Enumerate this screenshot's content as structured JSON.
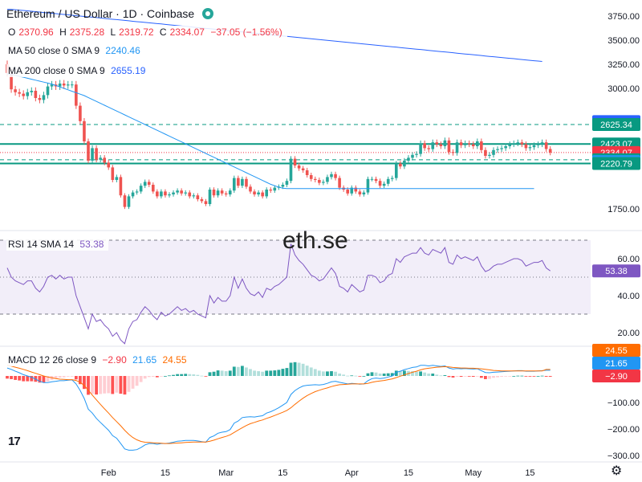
{
  "header": {
    "title": "Ethereum / US Dollar · 1D · Coinbase",
    "ohlc": {
      "o_label": "O",
      "o": "2370.96",
      "h_label": "H",
      "h": "2375.28",
      "l_label": "L",
      "l": "2319.72",
      "c_label": "C",
      "c": "2334.07",
      "change": "−37.05 (−1.56%)"
    }
  },
  "indicators": {
    "ma50": {
      "label": "MA 50 close 0 SMA 9",
      "value": "2240.46",
      "color": "#2196f3"
    },
    "ma200": {
      "label": "MA 200 close 0 SMA 9",
      "value": "2655.19",
      "color": "#2962ff"
    },
    "rsi": {
      "label": "RSI 14 SMA 14",
      "value": "53.38",
      "color": "#7e57c2"
    },
    "macd": {
      "label": "MACD 12 26 close 9",
      "hist": "−2.90",
      "macd": "21.65",
      "signal": "24.55",
      "macd_color": "#2196f3",
      "signal_color": "#ff6d00"
    }
  },
  "watermark": "eth.se",
  "logo": "17",
  "colors": {
    "up": "#26a69a",
    "down": "#ef5350",
    "level_green": "#089981",
    "text": "#131722"
  },
  "chart_data": {
    "type": "candlestick",
    "symbol": "ETH/USD",
    "timeframe": "1D",
    "exchange": "Coinbase",
    "price_axis": {
      "ticks": [
        1750,
        3000,
        3250,
        3500,
        3750
      ],
      "tick_labels": [
        "1750.00",
        "3000.00",
        "3250.00",
        "3500.00",
        "3750.00"
      ],
      "range": [
        1600,
        3850
      ]
    },
    "x_axis_labels": [
      "Feb",
      "15",
      "Mar",
      "15",
      "Apr",
      "15",
      "May",
      "15"
    ],
    "x_axis_days": [
      32,
      46,
      61,
      75,
      92,
      106,
      122,
      136
    ],
    "first_day": 7,
    "close": [
      3160,
      2990,
      2960,
      2945,
      2920,
      2960,
      2975,
      2900,
      2880,
      2930,
      3020,
      3040,
      3020,
      3050,
      3030,
      3040,
      3040,
      2820,
      2660,
      2450,
      2250,
      2380,
      2260,
      2280,
      2230,
      2180,
      2050,
      2080,
      1890,
      1770,
      1880,
      1920,
      1930,
      1990,
      2030,
      2000,
      1930,
      1880,
      1930,
      1890,
      1900,
      1920,
      1940,
      1910,
      1920,
      1880,
      1890,
      1850,
      1830,
      1800,
      1950,
      1890,
      1940,
      1910,
      1900,
      1940,
      2070,
      1990,
      2060,
      1980,
      1930,
      1900,
      1920,
      1880,
      1950,
      1940,
      1970,
      1980,
      2000,
      2040,
      2270,
      2200,
      2170,
      2150,
      2100,
      2060,
      2050,
      2020,
      2030,
      2080,
      2110,
      2070,
      1970,
      1950,
      1910,
      1970,
      1930,
      1900,
      1920,
      2060,
      2060,
      2040,
      1990,
      2010,
      2060,
      2070,
      2220,
      2190,
      2250,
      2280,
      2310,
      2320,
      2430,
      2380,
      2370,
      2440,
      2420,
      2400,
      2460,
      2340,
      2330,
      2440,
      2410,
      2430,
      2420,
      2400,
      2450,
      2360,
      2300,
      2310,
      2360,
      2370,
      2380,
      2400,
      2420,
      2430,
      2440,
      2420,
      2380,
      2390,
      2410,
      2420,
      2440,
      2371,
      2334
    ],
    "ma200": [
      3820,
      3820,
      3816,
      3812,
      3808,
      3804,
      3800,
      3796,
      3792,
      3787,
      3783,
      3779,
      3775,
      3771,
      3767,
      3763,
      3758,
      3754,
      3750,
      3746,
      3742,
      3738,
      3734,
      3730,
      3725,
      3721,
      3717,
      3713,
      3709,
      3705,
      3701,
      3696,
      3692,
      3688,
      3684,
      3680,
      3676,
      3672,
      3668,
      3663,
      3659,
      3655,
      3651,
      3647,
      3643,
      3639,
      3634,
      3630,
      3626,
      3622,
      3618,
      3614,
      3610,
      3605,
      3601,
      3597,
      3593,
      3589,
      3585,
      3581,
      3576,
      3572,
      3568,
      3564,
      3560,
      3556,
      3552,
      3548,
      3543,
      3539,
      3535,
      3531,
      3527,
      3523,
      3519,
      3514,
      3510,
      3506,
      3502,
      3498,
      3494,
      3490,
      3485,
      3481,
      3477,
      3473,
      3469,
      3465,
      3461,
      3456,
      3452,
      3448,
      3444,
      3440,
      3436,
      3432,
      3428,
      3423,
      3419,
      3415,
      3411,
      3407,
      3403,
      3399,
      3394,
      3390,
      3386,
      3382,
      3378,
      3374,
      3370,
      3365,
      3361,
      3357,
      3353,
      3349,
      3345,
      3341,
      3336,
      3332,
      3328,
      3324,
      3320,
      3316,
      3312,
      3308,
      3303,
      3299,
      3295,
      3291,
      3287,
      3283,
      3279,
      2655
    ],
    "ma50": [
      3150,
      3145,
      3135,
      3125,
      3115,
      3105,
      3095,
      3085,
      3075,
      3065,
      3055,
      3045,
      3030,
      3015,
      3000,
      2985,
      2970,
      2955,
      2940,
      2925,
      2905,
      2885,
      2865,
      2845,
      2825,
      2805,
      2785,
      2765,
      2745,
      2725,
      2705,
      2685,
      2665,
      2645,
      2625,
      2605,
      2585,
      2565,
      2545,
      2525,
      2505,
      2485,
      2465,
      2445,
      2425,
      2405,
      2385,
      2365,
      2345,
      2325,
      2305,
      2285,
      2265,
      2245,
      2225,
      2205,
      2185,
      2165,
      2145,
      2125,
      2105,
      2085,
      2065,
      2045,
      2025,
      2005,
      1990,
      1975,
      1965,
      1960,
      1960,
      1960,
      1960,
      1960,
      1960,
      1960,
      1960,
      1960,
      1960,
      1960,
      1960,
      1960,
      1960,
      1960,
      1960,
      1960,
      1960,
      1960,
      1960,
      1960,
      1960,
      1960,
      1960,
      1960,
      1960,
      1960,
      1960,
      1960,
      1960,
      1960,
      1960,
      1960,
      1960,
      1960,
      1960,
      1960,
      1960,
      1960,
      1960,
      1960,
      1960,
      1960,
      1960,
      1960,
      1960,
      1960,
      1960,
      1960,
      1960,
      1960,
      1960,
      1960,
      1960,
      1960,
      1960,
      1960,
      1960,
      1960,
      1960,
      1960,
      1960,
      2240
    ],
    "levels": [
      {
        "value": 2625.34,
        "label": "2625.34",
        "style": "dashed",
        "color": "#089981"
      },
      {
        "value": 2423.07,
        "label": "2423.07",
        "style": "solid",
        "color": "#089981"
      },
      {
        "value": 2259.15,
        "label": "2259.15",
        "style": "dashed",
        "color": "#089981"
      },
      {
        "value": 2220.79,
        "label": "2220.79",
        "style": "solid",
        "color": "#089981"
      }
    ],
    "price_labels": [
      {
        "value": 2655.19,
        "label": "2655.19",
        "color": "#2962ff"
      },
      {
        "value": 2625.34,
        "label": "2625.34",
        "color": "#089981"
      },
      {
        "value": 2423.07,
        "label": "2423.07",
        "color": "#089981"
      },
      {
        "value": 2334.07,
        "label": "2334.07",
        "color": "#f23645"
      },
      {
        "value": 2259.15,
        "label": "2259.15",
        "color": "#089981"
      },
      {
        "value": 2240.46,
        "label": "2240.46",
        "color": "#2196f3"
      },
      {
        "value": 2220.79,
        "label": "2220.79",
        "color": "#089981"
      }
    ],
    "rsi": {
      "axis_ticks": [
        20,
        40,
        60
      ],
      "tick_labels": [
        "20.00",
        "40.00",
        "60.00"
      ],
      "band": [
        30,
        70
      ],
      "range": [
        15,
        75
      ],
      "values": [
        55,
        50,
        48,
        47,
        46,
        48,
        48,
        44,
        42,
        45,
        50,
        51,
        49,
        51,
        49,
        50,
        50,
        40,
        34,
        28,
        22,
        30,
        26,
        27,
        24,
        22,
        18,
        20,
        16,
        14,
        22,
        26,
        27,
        31,
        34,
        32,
        29,
        27,
        31,
        29,
        30,
        32,
        34,
        32,
        33,
        31,
        32,
        30,
        29,
        28,
        40,
        36,
        39,
        37,
        37,
        40,
        50,
        44,
        49,
        44,
        41,
        40,
        42,
        39,
        44,
        43,
        45,
        46,
        48,
        50,
        68,
        62,
        59,
        57,
        54,
        51,
        50,
        48,
        49,
        52,
        55,
        52,
        45,
        44,
        42,
        46,
        44,
        42,
        43,
        51,
        51,
        50,
        47,
        48,
        51,
        52,
        60,
        58,
        61,
        62,
        63,
        63,
        66,
        63,
        62,
        65,
        64,
        63,
        66,
        58,
        57,
        62,
        60,
        61,
        60,
        59,
        61,
        56,
        53,
        54,
        56,
        57,
        57,
        58,
        59,
        60,
        60,
        59,
        56,
        57,
        58,
        58,
        59,
        55,
        53.38
      ]
    },
    "macd": {
      "axis_ticks": [
        -300,
        -200,
        -100
      ],
      "tick_labels": [
        "−300.00",
        "−200.00",
        "−100.00"
      ],
      "range": [
        -330,
        40
      ],
      "macd": [
        30,
        25,
        18,
        12,
        5,
        0,
        -5,
        -12,
        -20,
        -25,
        -25,
        -22,
        -20,
        -18,
        -18,
        -16,
        -15,
        -30,
        -55,
        -85,
        -125,
        -140,
        -160,
        -175,
        -190,
        -205,
        -225,
        -235,
        -255,
        -275,
        -280,
        -280,
        -278,
        -270,
        -260,
        -255,
        -255,
        -258,
        -255,
        -255,
        -253,
        -250,
        -246,
        -245,
        -243,
        -243,
        -243,
        -245,
        -248,
        -250,
        -232,
        -226,
        -216,
        -212,
        -210,
        -202,
        -178,
        -170,
        -157,
        -155,
        -154,
        -155,
        -152,
        -150,
        -140,
        -135,
        -128,
        -120,
        -110,
        -100,
        -70,
        -55,
        -45,
        -38,
        -35,
        -34,
        -33,
        -34,
        -32,
        -28,
        -22,
        -20,
        -24,
        -27,
        -30,
        -28,
        -29,
        -31,
        -30,
        -18,
        -10,
        -8,
        -10,
        -8,
        -4,
        0,
        14,
        18,
        24,
        28,
        32,
        34,
        40,
        40,
        38,
        40,
        38,
        36,
        38,
        30,
        26,
        28,
        27,
        28,
        27,
        26,
        27,
        20,
        13,
        12,
        14,
        15,
        16,
        17,
        18,
        19,
        20,
        20,
        18,
        18,
        18,
        19,
        20,
        21.65,
        21.65
      ],
      "signal": [
        40,
        37,
        33,
        29,
        25,
        20,
        15,
        10,
        5,
        0,
        -4,
        -7,
        -10,
        -12,
        -13,
        -14,
        -14,
        -17,
        -24,
        -36,
        -54,
        -72,
        -90,
        -107,
        -124,
        -140,
        -157,
        -172,
        -188,
        -205,
        -220,
        -232,
        -241,
        -247,
        -250,
        -251,
        -252,
        -253,
        -254,
        -255,
        -255,
        -254,
        -253,
        -252,
        -251,
        -250,
        -249,
        -249,
        -249,
        -249,
        -246,
        -242,
        -237,
        -232,
        -228,
        -222,
        -213,
        -204,
        -195,
        -187,
        -180,
        -175,
        -170,
        -166,
        -160,
        -155,
        -149,
        -143,
        -137,
        -130,
        -120,
        -107,
        -95,
        -84,
        -74,
        -66,
        -59,
        -54,
        -49,
        -45,
        -40,
        -36,
        -33,
        -32,
        -31,
        -30,
        -30,
        -30,
        -30,
        -28,
        -24,
        -21,
        -19,
        -17,
        -14,
        -11,
        -6,
        -1,
        4,
        9,
        14,
        18,
        23,
        27,
        29,
        31,
        33,
        34,
        35,
        34,
        32,
        31,
        30,
        30,
        29,
        29,
        28,
        27,
        25,
        23,
        21,
        20,
        19,
        19,
        19,
        19,
        19,
        19,
        19,
        19,
        19,
        19,
        19,
        24.55,
        24.55
      ],
      "hist": [
        -10,
        -12,
        -15,
        -17,
        -20,
        -20,
        -20,
        -22,
        -25,
        -25,
        -21,
        -15,
        -10,
        -6,
        -5,
        -2,
        -1,
        -13,
        -31,
        -49,
        -71,
        -68,
        -70,
        -68,
        -66,
        -65,
        -68,
        -63,
        -67,
        -70,
        -60,
        -48,
        -37,
        -23,
        -10,
        -4,
        -3,
        -5,
        -1,
        0,
        2,
        4,
        7,
        7,
        8,
        7,
        6,
        4,
        1,
        -1,
        14,
        16,
        21,
        20,
        18,
        20,
        35,
        34,
        38,
        32,
        26,
        20,
        18,
        16,
        20,
        20,
        21,
        23,
        27,
        30,
        50,
        52,
        50,
        46,
        39,
        32,
        26,
        20,
        17,
        17,
        18,
        16,
        9,
        5,
        1,
        2,
        1,
        -1,
        0,
        10,
        14,
        13,
        9,
        9,
        10,
        11,
        20,
        19,
        20,
        19,
        18,
        16,
        17,
        13,
        9,
        9,
        5,
        2,
        3,
        -4,
        -6,
        -3,
        -3,
        -2,
        -2,
        -3,
        -1,
        -7,
        -12,
        -11,
        -7,
        -5,
        -3,
        -2,
        -1,
        0,
        1,
        1,
        -1,
        -1,
        -1,
        0,
        1,
        -2.9,
        -2.9
      ]
    }
  }
}
